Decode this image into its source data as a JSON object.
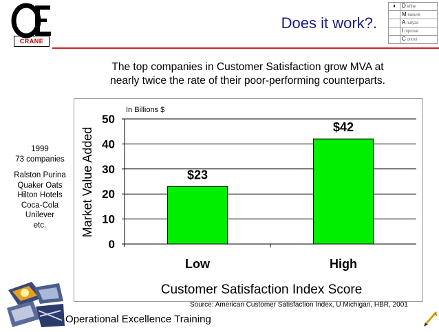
{
  "logo": {
    "mark": "Œ",
    "name": "CRANE"
  },
  "slide_title": "Does it work?.",
  "dmaic": [
    {
      "marker": "➧",
      "letter": "D",
      "rest": "efine"
    },
    {
      "marker": "",
      "letter": "M",
      "rest": "easure"
    },
    {
      "marker": "",
      "letter": "A",
      "rest": "nalyze"
    },
    {
      "marker": "",
      "letter": "I",
      "rest": "mprove"
    },
    {
      "marker": "",
      "letter": "C",
      "rest": "ontrol"
    }
  ],
  "subtitle_line1": "The top companies in Customer Satisfaction grow MVA at",
  "subtitle_line2": "nearly twice the rate of their poor-performing counterparts.",
  "side_list": {
    "year": "1999",
    "count": "73 companies",
    "companies": [
      "Ralston Purina",
      "Quaker Oats",
      "Hilton Hotels",
      "Coca-Cola",
      "Unilever",
      "etc."
    ]
  },
  "chart_data": {
    "type": "bar",
    "categories": [
      "Low",
      "High"
    ],
    "values": [
      23,
      42
    ],
    "data_labels": [
      "$23",
      "$42"
    ],
    "unit_note": "In Billions $",
    "ylabel": "Market Value Added",
    "xlabel": "Customer Satisfaction Index Score",
    "ylim": [
      0,
      50
    ],
    "yticks": [
      0,
      10,
      20,
      30,
      40,
      50
    ],
    "bar_color": "#00ee00",
    "grid": true
  },
  "source": "Source:  American Customer Satisfaction Index, U Michigan, HBR, 2001",
  "footer": "Operational Excellence Training",
  "icons": {
    "bottom_art": "decorative-photo-collage",
    "pen": "pen-icon"
  }
}
